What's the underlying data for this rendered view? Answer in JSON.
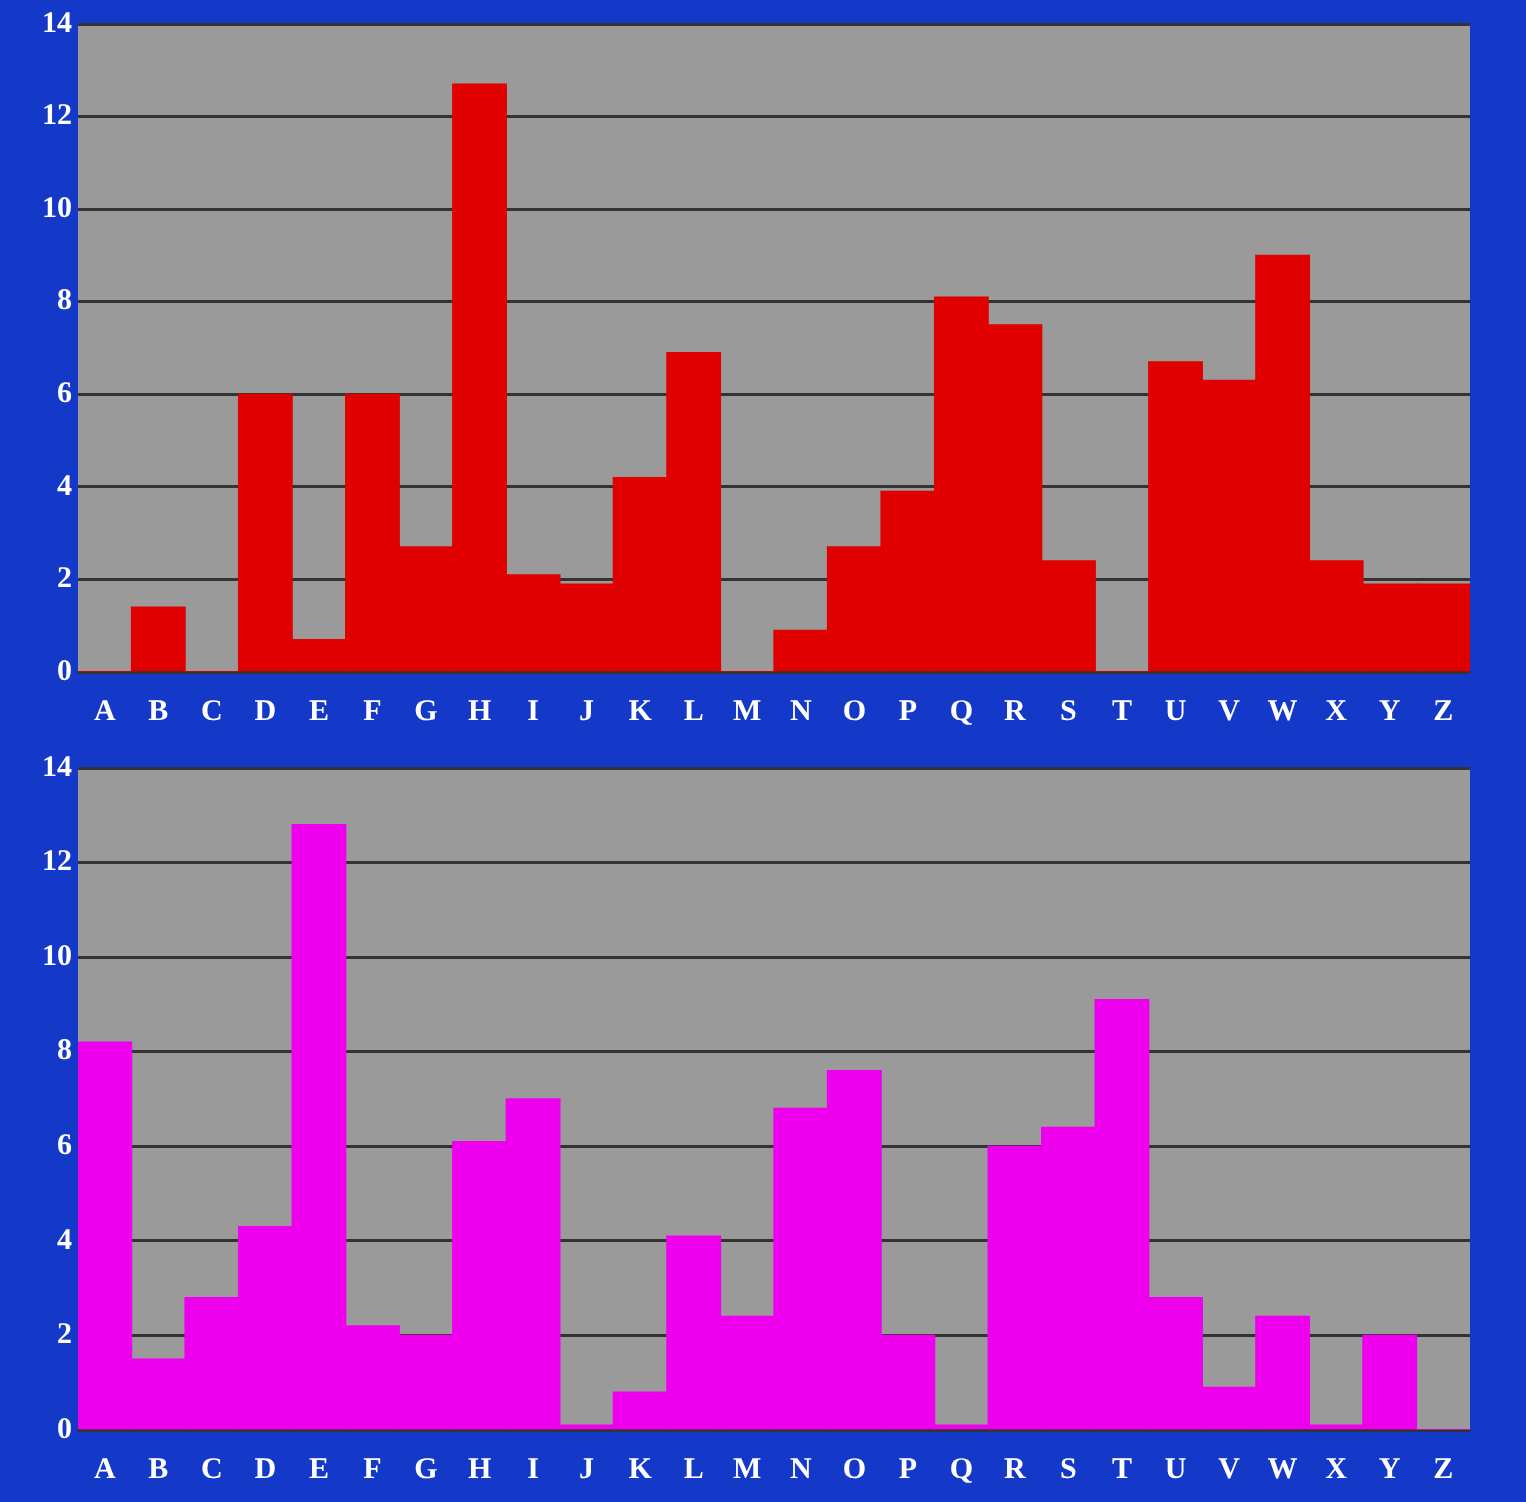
{
  "chart_data": [
    {
      "type": "bar",
      "categories": [
        "A",
        "B",
        "C",
        "D",
        "E",
        "F",
        "G",
        "H",
        "I",
        "J",
        "K",
        "L",
        "M",
        "N",
        "O",
        "P",
        "Q",
        "R",
        "S",
        "T",
        "U",
        "V",
        "W",
        "X",
        "Y",
        "Z"
      ],
      "values": [
        0,
        1.4,
        0,
        6.0,
        0.7,
        6.0,
        2.7,
        12.7,
        2.1,
        1.9,
        4.2,
        6.9,
        0,
        0.9,
        2.7,
        3.9,
        8.1,
        7.5,
        2.4,
        0,
        6.7,
        6.3,
        9.0,
        2.4,
        1.9,
        1.9
      ],
      "color": "#e00000",
      "ylim": [
        0,
        14
      ],
      "yticks": [
        0,
        2,
        4,
        6,
        8,
        10,
        12,
        14
      ],
      "grid": "y",
      "legend": false
    },
    {
      "type": "bar",
      "categories": [
        "A",
        "B",
        "C",
        "D",
        "E",
        "F",
        "G",
        "H",
        "I",
        "J",
        "K",
        "L",
        "M",
        "N",
        "O",
        "P",
        "Q",
        "R",
        "S",
        "T",
        "U",
        "V",
        "W",
        "X",
        "Y",
        "Z"
      ],
      "values": [
        8.2,
        1.5,
        2.8,
        4.3,
        12.8,
        2.2,
        2.0,
        6.1,
        7.0,
        0.1,
        0.8,
        4.1,
        2.4,
        6.8,
        7.6,
        2.0,
        0.1,
        6.0,
        6.4,
        9.1,
        2.8,
        0.9,
        2.4,
        0.1,
        2.0,
        0
      ],
      "color": "#ee00ee",
      "ylim": [
        0,
        14
      ],
      "yticks": [
        0,
        2,
        4,
        6,
        8,
        10,
        12,
        14
      ],
      "grid": "y",
      "legend": false
    }
  ]
}
